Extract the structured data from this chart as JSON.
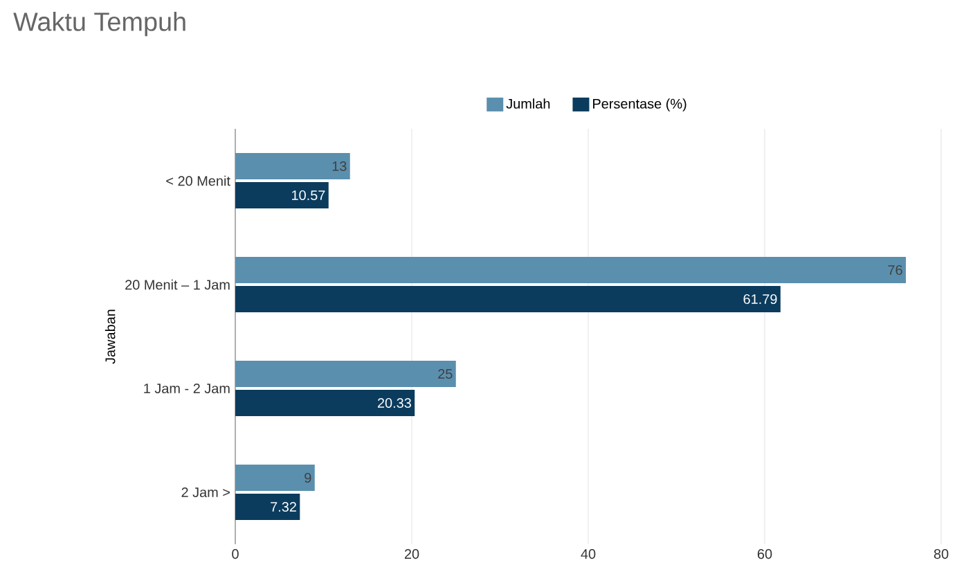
{
  "chart_data": {
    "type": "bar",
    "orientation": "horizontal",
    "title": "Waktu Tempuh",
    "ylabel": "Jawaban",
    "categories": [
      "< 20 Menit",
      "20 Menit – 1 Jam",
      "1 Jam - 2 Jam",
      "2 Jam >"
    ],
    "series": [
      {
        "name": "Jumlah",
        "color": "#5b8fae",
        "values": [
          13,
          76,
          25,
          9
        ]
      },
      {
        "name": "Persentase (%)",
        "color": "#0b3c5d",
        "values": [
          10.57,
          61.79,
          20.33,
          7.32
        ]
      }
    ],
    "xlim": [
      0,
      80
    ],
    "xticks": [
      0,
      20,
      40,
      60,
      80
    ],
    "grid": "x",
    "legend": "top",
    "data_labels": true
  }
}
